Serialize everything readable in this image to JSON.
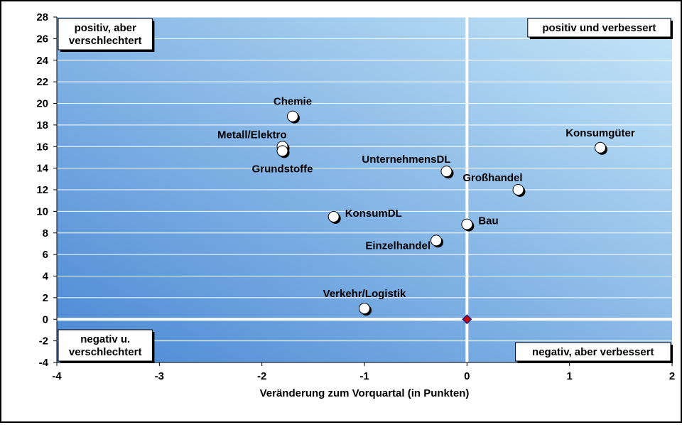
{
  "chart_data": {
    "type": "scatter",
    "title": "",
    "xlabel": "Veränderung zum Vorquartal (in Punkten)",
    "ylabel": "",
    "xlim": [
      -4,
      2
    ],
    "ylim": [
      -4,
      28
    ],
    "x_ticks": [
      "-4",
      "-3",
      "-2",
      "-1",
      "0",
      "1",
      "2"
    ],
    "y_ticks": [
      "-4",
      "-2",
      "0",
      "2",
      "4",
      "6",
      "8",
      "10",
      "12",
      "14",
      "16",
      "18",
      "20",
      "22",
      "24",
      "26",
      "28"
    ],
    "grid": "horizontal",
    "points": [
      {
        "label": "Chemie",
        "x": -1.7,
        "y": 18.8,
        "label_pos": "above"
      },
      {
        "label": "Metall/Elektro",
        "x": -1.8,
        "y": 16.0,
        "label_pos": "upper-left"
      },
      {
        "label": "Grundstoffe",
        "x": -1.8,
        "y": 15.6,
        "label_pos": "below"
      },
      {
        "label": "UnternehmensDL",
        "x": -0.2,
        "y": 13.7,
        "label_pos": "upper-left"
      },
      {
        "label": "Konsumgüter",
        "x": 1.3,
        "y": 15.9,
        "label_pos": "above"
      },
      {
        "label": "Großhandel",
        "x": 0.5,
        "y": 12.0,
        "label_pos": "upper-left"
      },
      {
        "label": "KonsumDL",
        "x": -1.3,
        "y": 9.5,
        "label_pos": "right"
      },
      {
        "label": "Bau",
        "x": 0.0,
        "y": 8.8,
        "label_pos": "right"
      },
      {
        "label": "Einzelhandel",
        "x": -0.3,
        "y": 7.3,
        "label_pos": "lower-left"
      },
      {
        "label": "Verkehr/Logistik",
        "x": -1.0,
        "y": 1.0,
        "label_pos": "above"
      }
    ],
    "origin_marker": {
      "x": 0,
      "y": 0,
      "color": "#cc0000"
    },
    "quadrant_labels": {
      "top_left": [
        "positiv, aber",
        "verschlechtert"
      ],
      "top_right": [
        "positiv und verbessert"
      ],
      "bottom_left": [
        "negativ u.",
        "verschlechtert"
      ],
      "bottom_right": [
        "negativ, aber verbessert"
      ]
    },
    "colors": {
      "plot_dark": "#4a88d4",
      "plot_light": "#c5e6f8",
      "point_fill": "#ffffff",
      "point_shadow": "#000000"
    }
  }
}
